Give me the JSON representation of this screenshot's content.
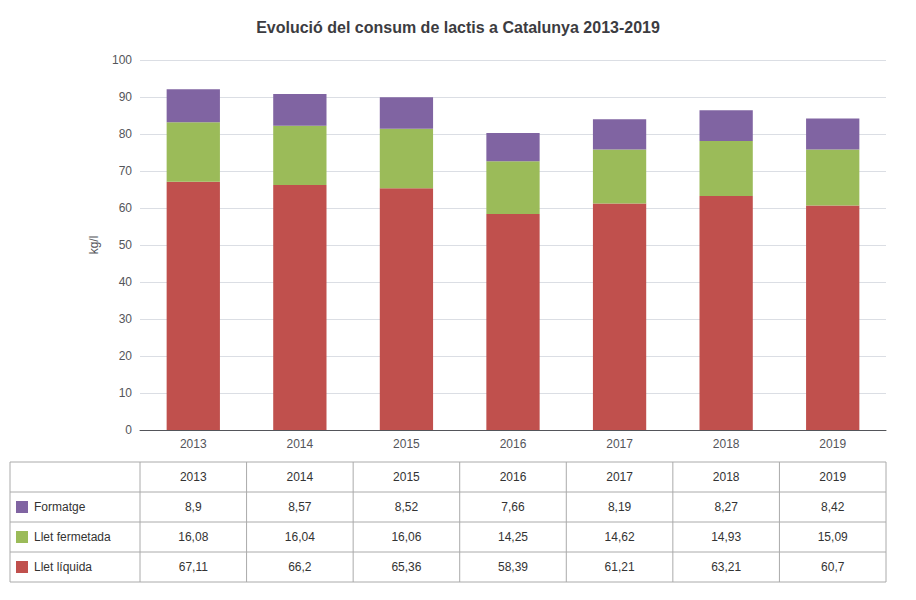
{
  "chart_data": {
    "type": "bar",
    "title": "Evolució del consum de lactis a Catalunya 2013-2019",
    "categories": [
      "2013",
      "2014",
      "2015",
      "2016",
      "2017",
      "2018",
      "2019"
    ],
    "stacked": true,
    "grid": true,
    "ylabel": "kg/l",
    "ylim": [
      0,
      100
    ],
    "yticks": [
      0,
      10,
      20,
      30,
      40,
      50,
      60,
      70,
      80,
      90,
      100
    ],
    "series": [
      {
        "name": "Llet líquida",
        "color": "#C0504D",
        "values": [
          67.11,
          66.2,
          65.36,
          58.39,
          61.21,
          63.21,
          60.7
        ],
        "value_labels": [
          "67,11",
          "66,2",
          "65,36",
          "58,39",
          "61,21",
          "63,21",
          "60,7"
        ]
      },
      {
        "name": "Llet fermetada",
        "color": "#9BBB59",
        "values": [
          16.08,
          16.04,
          16.06,
          14.25,
          14.62,
          14.93,
          15.09
        ],
        "value_labels": [
          "16,08",
          "16,04",
          "16,06",
          "14,25",
          "14,62",
          "14,93",
          "15,09"
        ]
      },
      {
        "name": "Formatge",
        "color": "#8064A2",
        "values": [
          8.9,
          8.57,
          8.52,
          7.66,
          8.19,
          8.27,
          8.42
        ],
        "value_labels": [
          "8,9",
          "8,57",
          "8,52",
          "7,66",
          "8,19",
          "8,27",
          "8,42"
        ]
      }
    ]
  }
}
